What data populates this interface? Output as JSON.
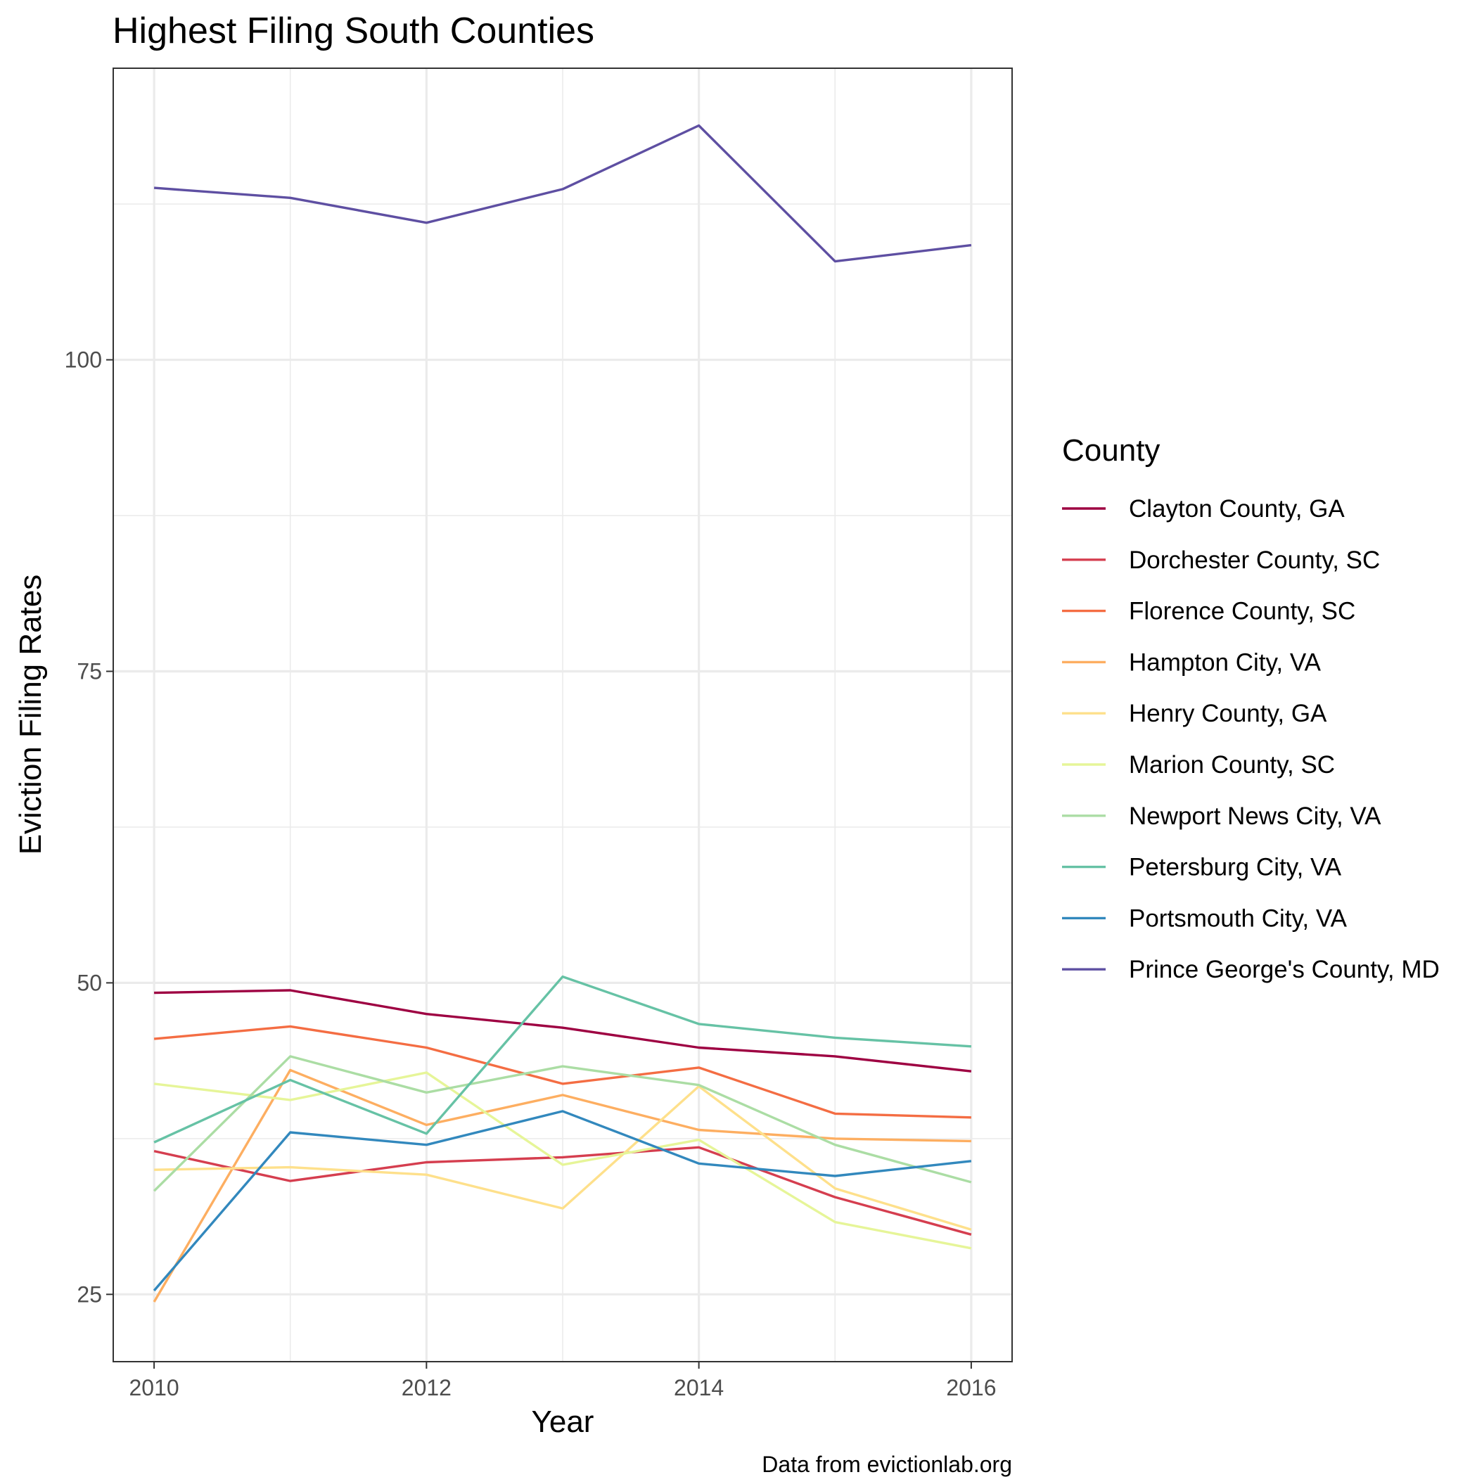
{
  "chart_data": {
    "type": "line",
    "title": "Highest Filing South Counties",
    "xlabel": "Year",
    "ylabel": "Eviction Filing Rates",
    "caption": "Data from evictionlab.org",
    "legend_title": "County",
    "legend_position": "right",
    "grid": true,
    "xlim": [
      2009.7,
      2016.3
    ],
    "ylim": [
      19.6,
      123.4
    ],
    "x_ticks": [
      2010,
      2012,
      2014,
      2016
    ],
    "y_ticks": [
      25,
      50,
      75,
      100
    ],
    "x": [
      2010,
      2011,
      2012,
      2013,
      2014,
      2015,
      2016
    ],
    "series": [
      {
        "name": "Clayton County, GA",
        "color": "#9E0142",
        "values": [
          49.2,
          49.4,
          47.5,
          46.4,
          44.8,
          44.1,
          42.9
        ]
      },
      {
        "name": "Dorchester County, SC",
        "color": "#D53E4F",
        "values": [
          36.5,
          34.1,
          35.6,
          36.0,
          36.8,
          32.8,
          29.8
        ]
      },
      {
        "name": "Florence County, SC",
        "color": "#F46D43",
        "values": [
          45.5,
          46.5,
          44.8,
          41.9,
          43.2,
          39.5,
          39.2
        ]
      },
      {
        "name": "Hampton City, VA",
        "color": "#FDAE61",
        "values": [
          24.4,
          43.0,
          38.6,
          41.0,
          38.2,
          37.5,
          37.3
        ]
      },
      {
        "name": "Henry County, GA",
        "color": "#FEE08B",
        "values": [
          35.0,
          35.2,
          34.6,
          31.9,
          41.7,
          33.5,
          30.2
        ]
      },
      {
        "name": "Marion County, SC",
        "color": "#E6F598",
        "values": [
          41.9,
          40.6,
          42.8,
          35.4,
          37.4,
          30.8,
          28.7
        ]
      },
      {
        "name": "Newport News City, VA",
        "color": "#ABDDA4",
        "values": [
          33.3,
          44.1,
          41.2,
          43.3,
          41.8,
          37.0,
          34.0
        ]
      },
      {
        "name": "Petersburg City, VA",
        "color": "#66C2A5",
        "values": [
          37.2,
          42.2,
          37.9,
          50.5,
          46.7,
          45.6,
          44.9
        ]
      },
      {
        "name": "Portsmouth City, VA",
        "color": "#3288BD",
        "values": [
          25.3,
          38.0,
          37.0,
          39.7,
          35.5,
          34.5,
          35.7
        ]
      },
      {
        "name": "Prince George's County, MD",
        "color": "#5E4FA2",
        "values": [
          113.8,
          113.0,
          111.0,
          113.7,
          118.8,
          107.9,
          109.2
        ]
      }
    ]
  }
}
